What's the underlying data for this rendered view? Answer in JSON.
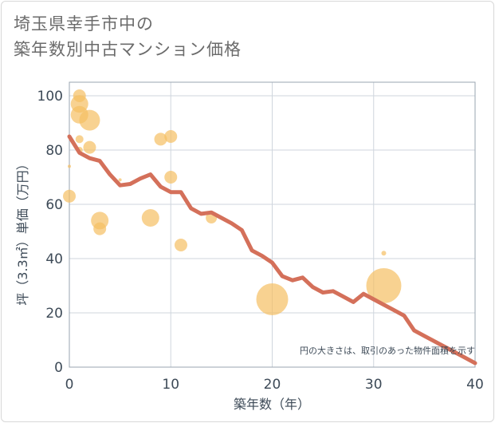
{
  "chart_data": {
    "type": "scatter",
    "title_lines": [
      "埼玉県幸手市中の",
      "築年数別中古マンション価格"
    ],
    "xlabel": "築年数（年）",
    "ylabel": "坪（3.3㎡）単価（万円）",
    "xlim": [
      0,
      40
    ],
    "ylim": [
      0,
      105
    ],
    "x_ticks": [
      0,
      10,
      20,
      30,
      40
    ],
    "y_ticks": [
      0,
      20,
      40,
      60,
      80,
      100
    ],
    "grid": true,
    "annotation": "円の大きさは、取引のあった物件面積を示す",
    "series": [
      {
        "type": "bubble",
        "color": "#f5bf63",
        "points": [
          {
            "x": 0,
            "y": 74,
            "size": 2
          },
          {
            "x": 0,
            "y": 63,
            "size": 8
          },
          {
            "x": 1,
            "y": 100,
            "size": 8
          },
          {
            "x": 1,
            "y": 97,
            "size": 11
          },
          {
            "x": 1,
            "y": 93,
            "size": 11
          },
          {
            "x": 1,
            "y": 84,
            "size": 5
          },
          {
            "x": 1,
            "y": 80,
            "size": 4
          },
          {
            "x": 2,
            "y": 91,
            "size": 13
          },
          {
            "x": 2,
            "y": 81,
            "size": 8
          },
          {
            "x": 3,
            "y": 54,
            "size": 11
          },
          {
            "x": 3,
            "y": 51,
            "size": 8
          },
          {
            "x": 5,
            "y": 69,
            "size": 2
          },
          {
            "x": 8,
            "y": 55,
            "size": 11
          },
          {
            "x": 9,
            "y": 84,
            "size": 8
          },
          {
            "x": 10,
            "y": 85,
            "size": 8
          },
          {
            "x": 10,
            "y": 70,
            "size": 8
          },
          {
            "x": 11,
            "y": 45,
            "size": 8
          },
          {
            "x": 14,
            "y": 55,
            "size": 7
          },
          {
            "x": 20,
            "y": 25,
            "size": 20
          },
          {
            "x": 31,
            "y": 30,
            "size": 22
          },
          {
            "x": 31,
            "y": 42,
            "size": 3
          }
        ]
      },
      {
        "type": "line",
        "color": "#d4705a",
        "x": [
          0,
          1,
          2,
          3,
          4,
          5,
          6,
          7,
          8,
          9,
          10,
          11,
          12,
          13,
          14,
          15,
          16,
          17,
          18,
          19,
          20,
          21,
          22,
          23,
          24,
          25,
          26,
          27,
          28,
          29,
          30,
          31,
          32,
          33,
          34,
          35,
          36,
          37,
          38,
          39,
          40
        ],
        "y": [
          85,
          79,
          77,
          76,
          71,
          67,
          67.5,
          69.5,
          71,
          66.5,
          64.5,
          64.5,
          58.5,
          56.5,
          57,
          55,
          53,
          50.5,
          43,
          41,
          38.5,
          33.5,
          32,
          33,
          29.5,
          27.5,
          28,
          26,
          24,
          27,
          25,
          23,
          21,
          19,
          13.5,
          11.5,
          9.5,
          7.5,
          5.5,
          3.5,
          1.5
        ]
      }
    ]
  }
}
